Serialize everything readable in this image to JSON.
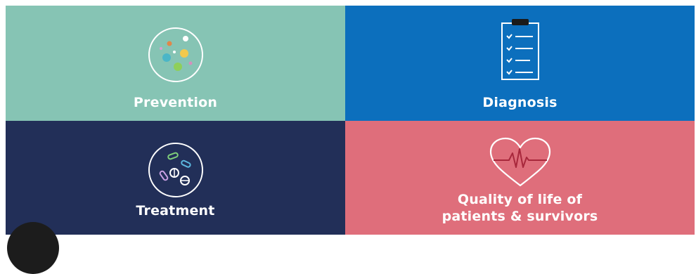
{
  "tiles": {
    "prevention": {
      "label": "Prevention",
      "color": "#86c4b4",
      "icon": "microbes-circle-icon"
    },
    "diagnosis": {
      "label": "Diagnosis",
      "color": "#0c6fbd",
      "icon": "clipboard-checklist-icon"
    },
    "treatment": {
      "label": "Treatment",
      "color": "#222f58",
      "icon": "pills-circle-icon"
    },
    "quality": {
      "label_line1": "Quality of life of",
      "label_line2": "patients & survivors",
      "color": "#df6e7b",
      "icon": "heart-pulse-icon"
    }
  }
}
